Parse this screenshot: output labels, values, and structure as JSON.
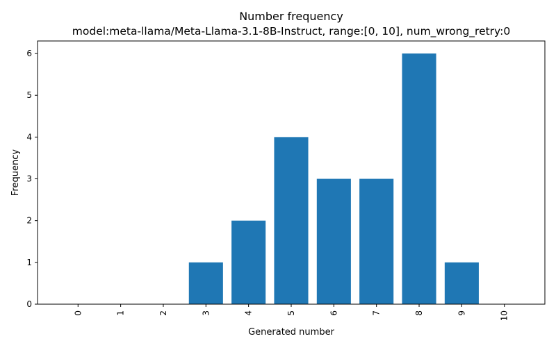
{
  "chart_data": {
    "type": "bar",
    "title": "Number frequency",
    "subtitle": "model:meta-llama/Meta-Llama-3.1-8B-Instruct, range:[0, 10], num_wrong_retry:0",
    "xlabel": "Generated number",
    "ylabel": "Frequency",
    "categories": [
      "0",
      "1",
      "2",
      "3",
      "4",
      "5",
      "6",
      "7",
      "8",
      "9",
      "10"
    ],
    "values": [
      0,
      0,
      0,
      1,
      2,
      4,
      3,
      3,
      6,
      1,
      0
    ],
    "ylim": [
      0,
      6.3
    ],
    "yticks": [
      0,
      1,
      2,
      3,
      4,
      5,
      6
    ],
    "grid": false,
    "bar_color": "#1f77b4"
  }
}
